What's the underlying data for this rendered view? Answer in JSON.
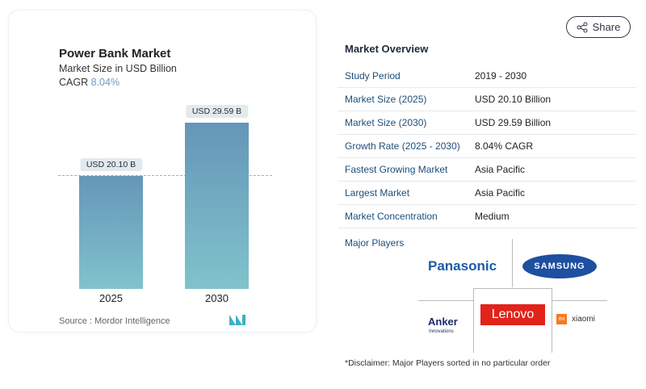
{
  "share_label": "Share",
  "chart": {
    "title": "Power Bank Market",
    "subtitle": "Market Size in USD Billion",
    "cagr_label": "CAGR",
    "cagr_value": "8.04%",
    "source": "Source :  Mordor Intelligence"
  },
  "chart_data": {
    "type": "bar",
    "categories": [
      "2025",
      "2030"
    ],
    "values": [
      20.1,
      29.59
    ],
    "data_labels": [
      "USD 20.10 B",
      "USD 29.59 B"
    ],
    "title": "Power Bank Market",
    "ylabel": "Market Size in USD Billion",
    "colors": [
      "#6596b8",
      "#80c3cc"
    ]
  },
  "overview": {
    "title": "Market Overview",
    "rows": [
      {
        "k": "Study Period",
        "v": "2019 - 2030"
      },
      {
        "k": "Market Size (2025)",
        "v": "USD 20.10 Billion"
      },
      {
        "k": "Market Size (2030)",
        "v": "USD 29.59 Billion"
      },
      {
        "k": "Growth Rate (2025 - 2030)",
        "v": "8.04% CAGR"
      },
      {
        "k": "Fastest Growing Market",
        "v": "Asia Pacific"
      },
      {
        "k": "Largest Market",
        "v": "Asia Pacific"
      },
      {
        "k": "Market Concentration",
        "v": "Medium"
      }
    ]
  },
  "players": {
    "title": "Major Players",
    "logos": [
      "Panasonic",
      "SAMSUNG",
      "Anker",
      "Innovations",
      "Lenovo",
      "xiaomi",
      "mi"
    ]
  },
  "disclaimer": "*Disclaimer: Major Players sorted in no particular order"
}
